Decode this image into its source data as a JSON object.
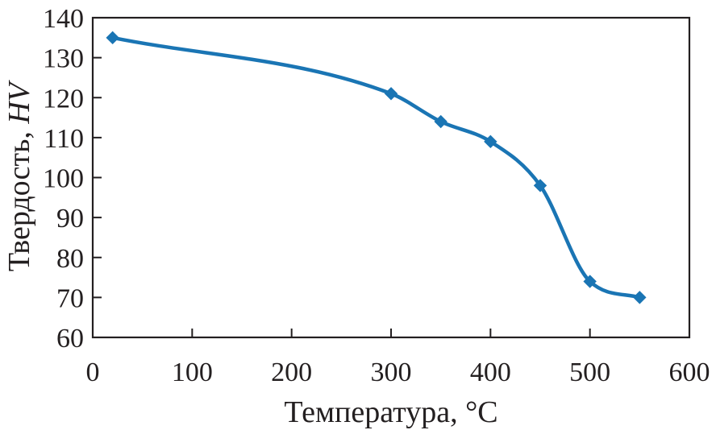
{
  "chart_data": {
    "type": "line",
    "title": "",
    "xlabel": "Температура, °C",
    "ylabel": "Твердость, ",
    "ylabel_unit": "HV",
    "xlim": [
      0,
      600
    ],
    "ylim": [
      60,
      140
    ],
    "x_ticks": [
      0,
      100,
      200,
      300,
      400,
      500,
      600
    ],
    "y_ticks": [
      60,
      70,
      80,
      90,
      100,
      110,
      120,
      130,
      140
    ],
    "grid": false,
    "legend": "none",
    "series": [
      {
        "color": "#1a75b4",
        "marker": "diamond",
        "x": [
          20,
          300,
          350,
          400,
          450,
          500,
          550
        ],
        "y": [
          135,
          121,
          114,
          109,
          98,
          74,
          70
        ]
      }
    ]
  }
}
